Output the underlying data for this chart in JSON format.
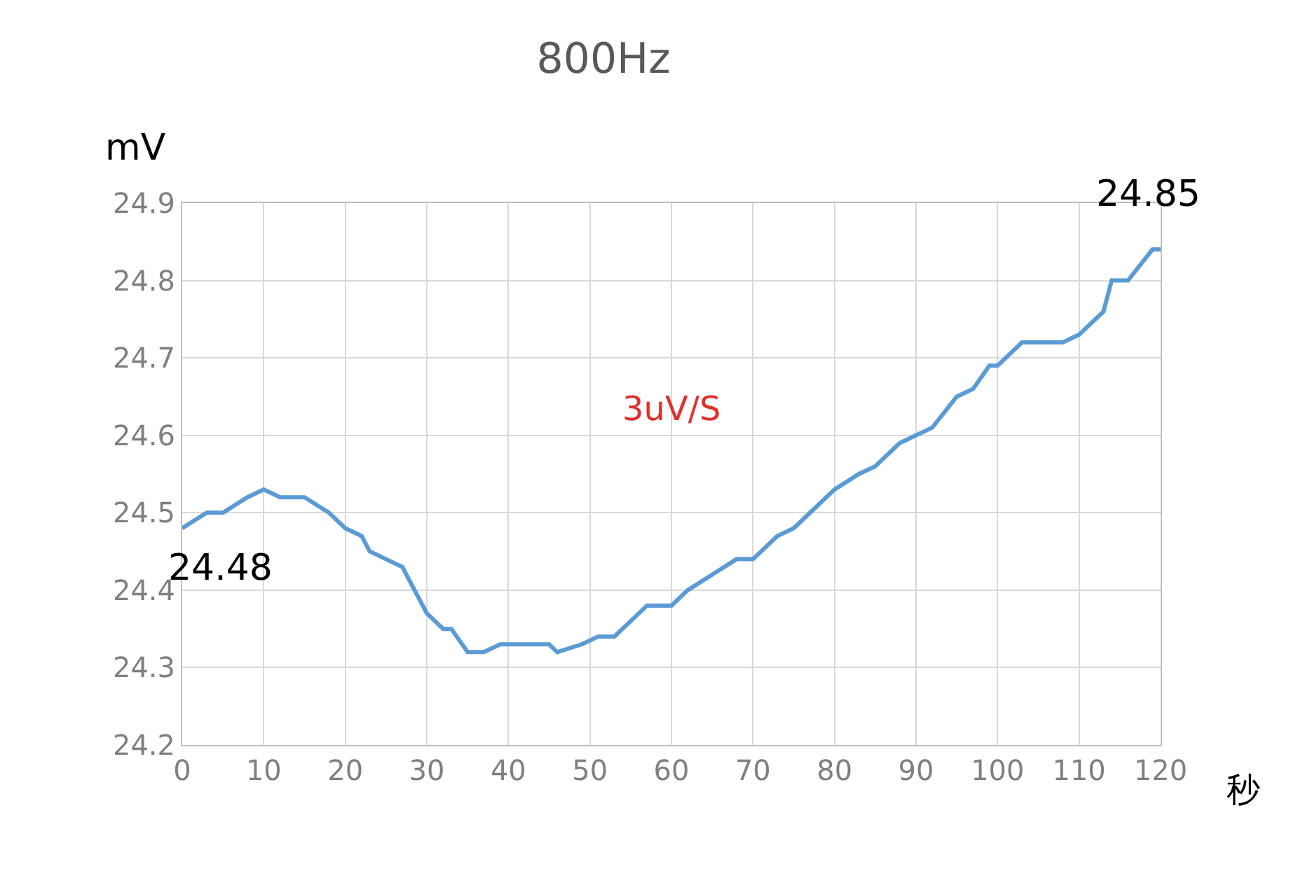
{
  "chart_data": {
    "type": "line",
    "title": "800Hz",
    "xlabel": "秒",
    "ylabel": "mV",
    "x": [
      0,
      3,
      5,
      8,
      10,
      12,
      15,
      18,
      20,
      22,
      23,
      25,
      27,
      28,
      30,
      32,
      33,
      35,
      37,
      39,
      45,
      46,
      49,
      51,
      53,
      55,
      57,
      60,
      62,
      65,
      68,
      70,
      73,
      75,
      78,
      80,
      83,
      85,
      88,
      90,
      92,
      95,
      97,
      99,
      100,
      103,
      108,
      110,
      113,
      114,
      116,
      119,
      120
    ],
    "series": [
      {
        "color": "#5b9bd5",
        "values": [
          24.48,
          24.5,
          24.5,
          24.52,
          24.53,
          24.52,
          24.52,
          24.5,
          24.48,
          24.47,
          24.45,
          24.44,
          24.43,
          24.41,
          24.37,
          24.35,
          24.35,
          24.32,
          24.32,
          24.33,
          24.33,
          24.32,
          24.33,
          24.34,
          24.34,
          24.36,
          24.38,
          24.38,
          24.4,
          24.42,
          24.44,
          24.44,
          24.47,
          24.48,
          24.51,
          24.53,
          24.55,
          24.56,
          24.59,
          24.6,
          24.61,
          24.65,
          24.66,
          24.69,
          24.69,
          24.72,
          24.72,
          24.73,
          24.76,
          24.8,
          24.8,
          24.84,
          24.84
        ]
      }
    ],
    "xlim": [
      0,
      120
    ],
    "xticks": [
      0,
      10,
      20,
      30,
      40,
      50,
      60,
      70,
      80,
      90,
      100,
      110,
      120
    ],
    "ylim": [
      24.2,
      24.9
    ],
    "yticks": [
      24.2,
      24.3,
      24.4,
      24.5,
      24.6,
      24.7,
      24.8,
      24.9
    ],
    "grid": true,
    "marker": "none",
    "line_style": "solid",
    "annotations": [
      {
        "text": "24.48",
        "x": 0,
        "y": 24.48
      },
      {
        "text": "24.85",
        "x": 120,
        "y": 24.84
      },
      "3uV/S"
    ]
  }
}
